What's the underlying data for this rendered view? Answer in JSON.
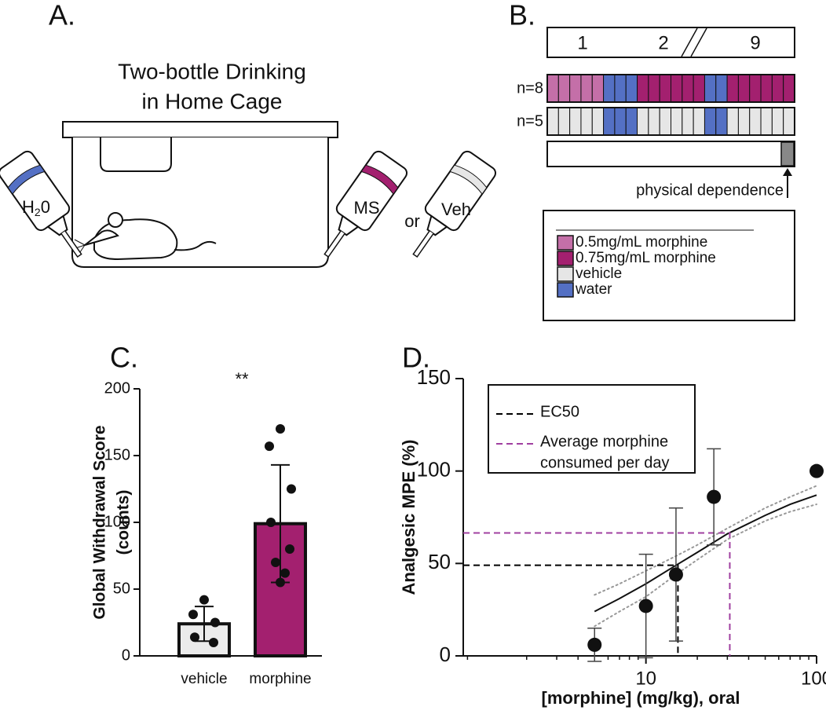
{
  "panel_a": {
    "letter": "A.",
    "title_lines": [
      "Two-bottle Drinking",
      "in Home Cage"
    ],
    "water_label": [
      "H",
      "2",
      "0"
    ],
    "drug_label": "MS",
    "or_label": "or",
    "vehicle_label": "Veh"
  },
  "panel_b": {
    "letter": "B.",
    "timeline": [
      "1",
      "2",
      "9"
    ],
    "rows": [
      {
        "label": "n=8",
        "cells": [
          0,
          0,
          0,
          0,
          0,
          3,
          3,
          3,
          1,
          1,
          1,
          1,
          1,
          1,
          3,
          3,
          1,
          1,
          1,
          1,
          1,
          1
        ]
      },
      {
        "label": "n=5",
        "cells": [
          2,
          2,
          2,
          2,
          2,
          3,
          3,
          3,
          2,
          2,
          2,
          2,
          2,
          2,
          3,
          3,
          2,
          2,
          2,
          2,
          2,
          2
        ]
      }
    ],
    "dependence_label": "physical dependence",
    "legend": [
      {
        "name": "0.5mg/mL morphine",
        "color": "#c46fa8"
      },
      {
        "name": "0.75mg/mL morphine",
        "color": "#a3206f"
      },
      {
        "name": "vehicle",
        "color": "#e6e6e6"
      },
      {
        "name": "water",
        "color": "#5470c4"
      }
    ]
  },
  "chart_data": [
    {
      "type": "bar",
      "letter": "C.",
      "ylabel_lines": [
        "Global  Withdrawal Score",
        "(counts)"
      ],
      "categories": [
        "vehicle",
        "morphine"
      ],
      "values": [
        24,
        99
      ],
      "errors": [
        13,
        44
      ],
      "colors": [
        "#ebebeb",
        "#a3206f"
      ],
      "points": [
        [
          42,
          31,
          25,
          14,
          10
        ],
        [
          170,
          157,
          125,
          100,
          80,
          70,
          62,
          55
        ]
      ],
      "annotation": "**",
      "ylim": [
        0,
        200
      ],
      "yticks": [
        0,
        50,
        100,
        150,
        200
      ]
    },
    {
      "type": "scatter",
      "letter": "D.",
      "ylabel": "Analgesic MPE (%)",
      "xlabel": "[morphine] (mg/kg), oral",
      "x": [
        5,
        10,
        15,
        25,
        100
      ],
      "values": [
        6,
        27,
        44,
        86,
        100
      ],
      "errors": [
        9,
        28,
        36,
        26,
        null
      ],
      "fit": {
        "x": [
          5,
          7,
          10,
          15,
          20,
          30,
          50,
          70,
          100
        ],
        "values": [
          24,
          31,
          39,
          49,
          56,
          66,
          76,
          82,
          87
        ],
        "upper": [
          33,
          39,
          46,
          54,
          60,
          69,
          80,
          86,
          92
        ],
        "lower": [
          16,
          24,
          32,
          44,
          52,
          63,
          73,
          78,
          82
        ]
      },
      "reference_lines": [
        {
          "name_lines": [
            "EC50"
          ],
          "x": 15.4,
          "y": 49,
          "color": "#000000"
        },
        {
          "name_lines": [
            "Average morphine",
            "consumed per day"
          ],
          "x": 31,
          "y": 66.5,
          "color": "#a040a0"
        }
      ],
      "log_x": true,
      "xlim": [
        0.85,
        100
      ],
      "xticks": [
        10,
        100
      ],
      "ylim": [
        0,
        150
      ],
      "yticks": [
        0,
        50,
        100,
        150
      ]
    }
  ]
}
